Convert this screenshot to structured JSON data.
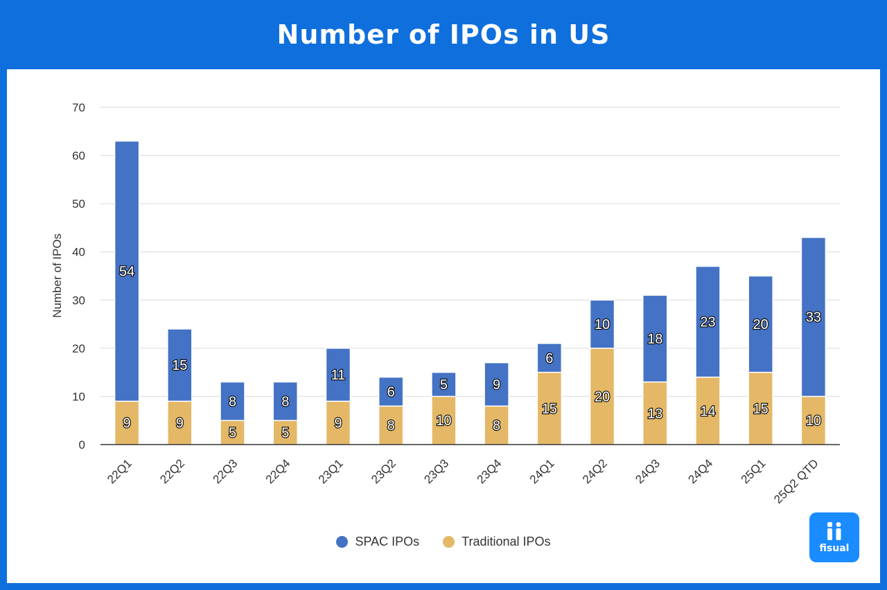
{
  "chart_data": {
    "type": "bar",
    "stacked": true,
    "title": "Number of IPOs in US",
    "xlabel": "",
    "ylabel": "Number of IPOs",
    "ylim": [
      0,
      70
    ],
    "yticks": [
      0,
      10,
      20,
      30,
      40,
      50,
      60,
      70
    ],
    "grid": true,
    "legend_position": "bottom",
    "categories": [
      "22Q1",
      "22Q2",
      "22Q3",
      "22Q4",
      "23Q1",
      "23Q2",
      "23Q3",
      "23Q4",
      "24Q1",
      "24Q2",
      "24Q3",
      "24Q4",
      "25Q1",
      "25Q2 QTD"
    ],
    "series": [
      {
        "name": "Traditional IPOs",
        "color": "#e4b866",
        "values": [
          9,
          9,
          5,
          5,
          9,
          8,
          10,
          8,
          15,
          20,
          13,
          14,
          15,
          10
        ]
      },
      {
        "name": "SPAC IPOs",
        "color": "#4472c4",
        "values": [
          54,
          15,
          8,
          8,
          11,
          6,
          5,
          9,
          6,
          10,
          18,
          23,
          20,
          33
        ]
      }
    ]
  },
  "legend": {
    "items": [
      {
        "label": "SPAC IPOs",
        "color": "#4472c4"
      },
      {
        "label": "Traditional IPOs",
        "color": "#e4b866"
      }
    ]
  },
  "logo": {
    "text": "fisual",
    "icon": "fisual-logo-icon"
  }
}
